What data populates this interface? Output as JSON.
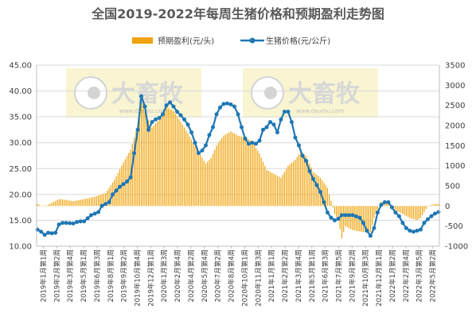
{
  "chart_data": {
    "type": "bar+line",
    "title": "全国2019-2022年每周生猪价格和预期盈利走势图",
    "left_axis": {
      "ylim": [
        10,
        45
      ],
      "ticks": [
        "10.00",
        "15.00",
        "20.00",
        "25.00",
        "30.00",
        "35.00",
        "40.00",
        "45.00"
      ]
    },
    "right_axis": {
      "ylim": [
        -1000,
        3500
      ],
      "ticks": [
        "-1000",
        "-500",
        "0",
        "500",
        "1000",
        "1500",
        "2000",
        "2500",
        "3000",
        "3500"
      ]
    },
    "legend_placement": "top-center",
    "grid": true,
    "x_tick_labels": [
      "2019年1月第1周",
      "2019年2月第2周",
      "2019年3月第4周",
      "2019年5月第1周",
      "2019年6月第3周",
      "2019年8月第1周",
      "2019年9月第2周",
      "2019年10月第4周",
      "2019年12月第1周",
      "2020年1月第3周",
      "2020年2月第4周",
      "2020年4月第2周",
      "2020年5月第4周",
      "2020年7月第2周",
      "2020年8月第4周",
      "2020年10月第1周",
      "2020年11月第3周",
      "2021年1月第1周",
      "2021年2月第2周",
      "2021年3月第4周",
      "2021年5月第1周",
      "2021年6月第3周",
      "2021年7月第5周",
      "2021年9月第2周",
      "2021年10月第3周",
      "2021年12月第1周",
      "2022年1月第2周",
      "2022年2月第4周",
      "2022年3月第5周",
      "2022年5月第2周"
    ],
    "series": [
      {
        "name": "预期盈利(元/头)",
        "axis": "right",
        "color": "#f0a30a",
        "keypoints": [
          [
            0,
            50
          ],
          [
            3,
            -10
          ],
          [
            6,
            30
          ],
          [
            12,
            170
          ],
          [
            16,
            150
          ],
          [
            20,
            120
          ],
          [
            26,
            170
          ],
          [
            32,
            230
          ],
          [
            38,
            320
          ],
          [
            43,
            650
          ],
          [
            47,
            1000
          ],
          [
            52,
            1400
          ],
          [
            56,
            2000
          ],
          [
            58,
            2750
          ],
          [
            60,
            2350
          ],
          [
            64,
            1950
          ],
          [
            66,
            2050
          ],
          [
            70,
            2250
          ],
          [
            72,
            2450
          ],
          [
            76,
            2350
          ],
          [
            80,
            2100
          ],
          [
            84,
            1800
          ],
          [
            88,
            1500
          ],
          [
            92,
            1200
          ],
          [
            94,
            1050
          ],
          [
            97,
            1200
          ],
          [
            100,
            1500
          ],
          [
            104,
            1750
          ],
          [
            108,
            1850
          ],
          [
            112,
            1750
          ],
          [
            116,
            1700
          ],
          [
            120,
            1600
          ],
          [
            124,
            1300
          ],
          [
            128,
            900
          ],
          [
            132,
            800
          ],
          [
            136,
            700
          ],
          [
            140,
            1000
          ],
          [
            144,
            1150
          ],
          [
            147,
            1350
          ],
          [
            150,
            1250
          ],
          [
            154,
            850
          ],
          [
            158,
            700
          ],
          [
            162,
            450
          ],
          [
            166,
            -200
          ],
          [
            168,
            -350
          ],
          [
            170,
            -800
          ],
          [
            172,
            -500
          ],
          [
            176,
            -600
          ],
          [
            182,
            -650
          ],
          [
            186,
            -650
          ],
          [
            188,
            -300
          ],
          [
            192,
            100
          ],
          [
            196,
            100
          ],
          [
            200,
            -100
          ],
          [
            204,
            -200
          ],
          [
            208,
            -300
          ],
          [
            212,
            -350
          ],
          [
            214,
            -300
          ],
          [
            218,
            0
          ],
          [
            222,
            50
          ],
          [
            224,
            50
          ]
        ]
      },
      {
        "name": "生猪价格(元/公斤)",
        "axis": "left",
        "color": "#1f77b4",
        "marker": "circle",
        "keypoints": [
          [
            0,
            13.2
          ],
          [
            2,
            12.8
          ],
          [
            4,
            12.2
          ],
          [
            6,
            12.6
          ],
          [
            8,
            12.5
          ],
          [
            10,
            12.6
          ],
          [
            12,
            14.2
          ],
          [
            14,
            14.5
          ],
          [
            16,
            14.5
          ],
          [
            20,
            14.4
          ],
          [
            23,
            14.8
          ],
          [
            26,
            14.8
          ],
          [
            30,
            16.0
          ],
          [
            34,
            16.6
          ],
          [
            36,
            17.8
          ],
          [
            40,
            18.5
          ],
          [
            42,
            20.0
          ],
          [
            46,
            21.5
          ],
          [
            50,
            22.5
          ],
          [
            52,
            23.3
          ],
          [
            54,
            28.0
          ],
          [
            56,
            32.5
          ],
          [
            58,
            39.0
          ],
          [
            60,
            37.0
          ],
          [
            62,
            32.5
          ],
          [
            64,
            34.0
          ],
          [
            66,
            34.5
          ],
          [
            68,
            34.8
          ],
          [
            70,
            35.5
          ],
          [
            72,
            37.2
          ],
          [
            74,
            37.8
          ],
          [
            76,
            37.0
          ],
          [
            78,
            36.0
          ],
          [
            80,
            35.3
          ],
          [
            82,
            34.5
          ],
          [
            84,
            33.5
          ],
          [
            86,
            32.0
          ],
          [
            88,
            30.0
          ],
          [
            90,
            28.0
          ],
          [
            92,
            28.5
          ],
          [
            94,
            29.5
          ],
          [
            96,
            31.5
          ],
          [
            98,
            33.0
          ],
          [
            100,
            35.5
          ],
          [
            102,
            36.8
          ],
          [
            104,
            37.5
          ],
          [
            106,
            37.6
          ],
          [
            108,
            37.4
          ],
          [
            110,
            37.0
          ],
          [
            112,
            35.5
          ],
          [
            114,
            33.0
          ],
          [
            116,
            30.8
          ],
          [
            118,
            29.8
          ],
          [
            120,
            30.0
          ],
          [
            122,
            29.8
          ],
          [
            124,
            30.4
          ],
          [
            126,
            32.5
          ],
          [
            128,
            33.0
          ],
          [
            130,
            34.0
          ],
          [
            132,
            33.5
          ],
          [
            134,
            32.0
          ],
          [
            136,
            34.5
          ],
          [
            138,
            36.0
          ],
          [
            140,
            36.0
          ],
          [
            142,
            34.0
          ],
          [
            144,
            31.0
          ],
          [
            146,
            29.5
          ],
          [
            148,
            27.5
          ],
          [
            150,
            26.5
          ],
          [
            152,
            24.5
          ],
          [
            154,
            23.0
          ],
          [
            156,
            21.8
          ],
          [
            158,
            20.5
          ],
          [
            160,
            18.5
          ],
          [
            162,
            16.5
          ],
          [
            164,
            15.5
          ],
          [
            166,
            15.0
          ],
          [
            168,
            15.3
          ],
          [
            170,
            16.0
          ],
          [
            172,
            16.0
          ],
          [
            176,
            16.0
          ],
          [
            180,
            15.5
          ],
          [
            182,
            14.5
          ],
          [
            184,
            13.0
          ],
          [
            186,
            12.0
          ],
          [
            188,
            13.5
          ],
          [
            190,
            16.5
          ],
          [
            192,
            18.0
          ],
          [
            194,
            18.5
          ],
          [
            196,
            18.5
          ],
          [
            198,
            17.5
          ],
          [
            200,
            16.5
          ],
          [
            202,
            15.8
          ],
          [
            204,
            14.5
          ],
          [
            206,
            13.5
          ],
          [
            208,
            13.0
          ],
          [
            210,
            12.8
          ],
          [
            212,
            13.0
          ],
          [
            214,
            13.2
          ],
          [
            216,
            14.5
          ],
          [
            218,
            15.2
          ],
          [
            220,
            15.8
          ],
          [
            222,
            16.3
          ],
          [
            224,
            16.6
          ]
        ]
      }
    ]
  },
  "watermark": {
    "logo_text": "大畜牧",
    "url_text": "www.dxumu.com"
  }
}
